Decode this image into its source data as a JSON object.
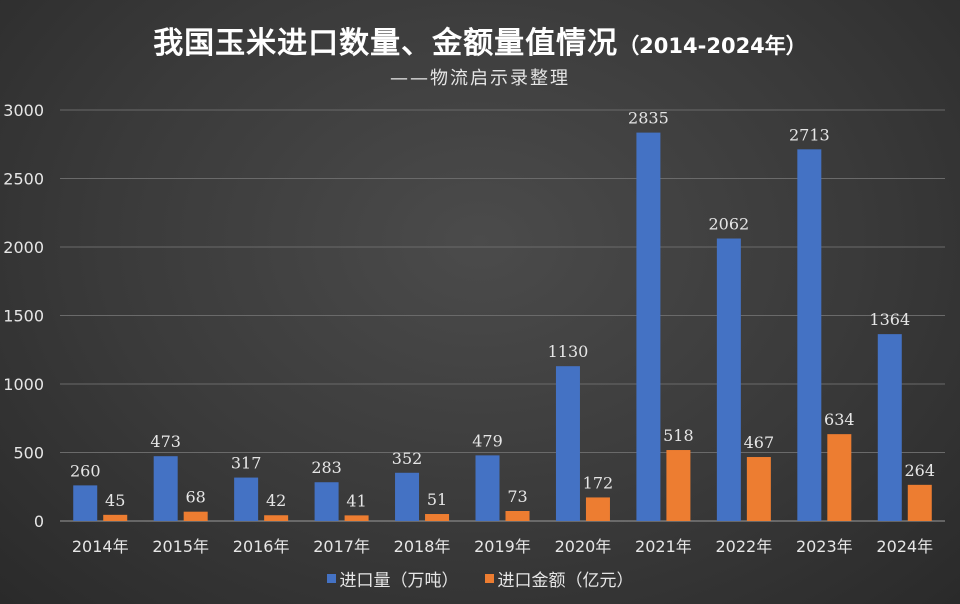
{
  "chart_data": {
    "type": "bar",
    "title": "我国玉米进口数量、金额量值情况",
    "title_range": "（2014-2024年）",
    "subtitle": "——物流启示录整理",
    "categories": [
      "2014年",
      "2015年",
      "2016年",
      "2017年",
      "2018年",
      "2019年",
      "2020年",
      "2021年",
      "2022年",
      "2023年",
      "2024年"
    ],
    "series": [
      {
        "name": "进口量（万吨）",
        "color": "#4472c4",
        "values": [
          260,
          473,
          317,
          283,
          352,
          479,
          1130,
          2835,
          2062,
          2713,
          1364
        ]
      },
      {
        "name": "进口金额（亿元）",
        "color": "#ed7d31",
        "values": [
          45,
          68,
          42,
          41,
          51,
          73,
          172,
          518,
          467,
          634,
          264
        ]
      }
    ],
    "ylim": [
      0,
      3000
    ],
    "yticks": [
      0,
      500,
      1000,
      1500,
      2000,
      2500,
      3000
    ],
    "grid": true,
    "legend_position": "bottom"
  }
}
